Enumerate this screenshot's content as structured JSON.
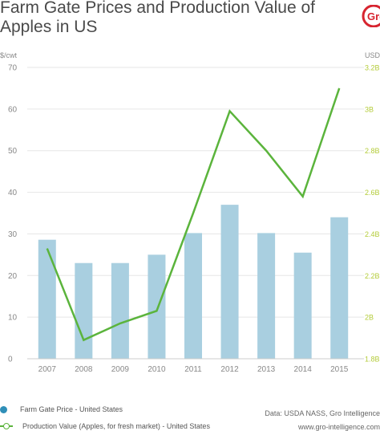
{
  "header": {
    "title": "Farm Gate Prices and Production Value of\nApples in US",
    "logo_text": "Gro"
  },
  "chart_data": {
    "type": "bar",
    "categories": [
      "2007",
      "2008",
      "2009",
      "2010",
      "2011",
      "2012",
      "2013",
      "2014",
      "2015"
    ],
    "left_axis": {
      "unit": "$/cwt",
      "ylim": [
        0,
        70
      ],
      "ticks": [
        "0",
        "10",
        "20",
        "30",
        "40",
        "50",
        "60",
        "70"
      ]
    },
    "right_axis": {
      "unit": "USD",
      "ylim": [
        1.8,
        3.2
      ],
      "ticks": [
        "1.8B",
        "2B",
        "2.2B",
        "2.4B",
        "2.6B",
        "2.8B",
        "3B",
        "3.2B"
      ]
    },
    "series": [
      {
        "name": "Farm Gate Price - United States",
        "type": "bar",
        "axis": "left",
        "color": "#a9cfe0",
        "values": [
          28.6,
          23.0,
          23.0,
          25.0,
          30.2,
          37.0,
          30.2,
          25.5,
          34.0
        ]
      },
      {
        "name": "Production Value (Apples, for fresh market) - United States",
        "type": "line",
        "axis": "right",
        "color": "#5bb43c",
        "values": [
          2.33,
          1.89,
          1.97,
          2.03,
          2.5,
          2.99,
          2.8,
          2.58,
          3.1
        ]
      }
    ],
    "grid": true,
    "legend_position": "bottom-left"
  },
  "footer": {
    "source_line1": "Data: USDA NASS, Gro Intelligence",
    "source_line2": "www.gro-intelligence.com"
  },
  "colors": {
    "bar": "#a9cfe0",
    "line": "#5bb43c",
    "legend_dot": "#2f8fb8",
    "brand": "#d7242f"
  }
}
